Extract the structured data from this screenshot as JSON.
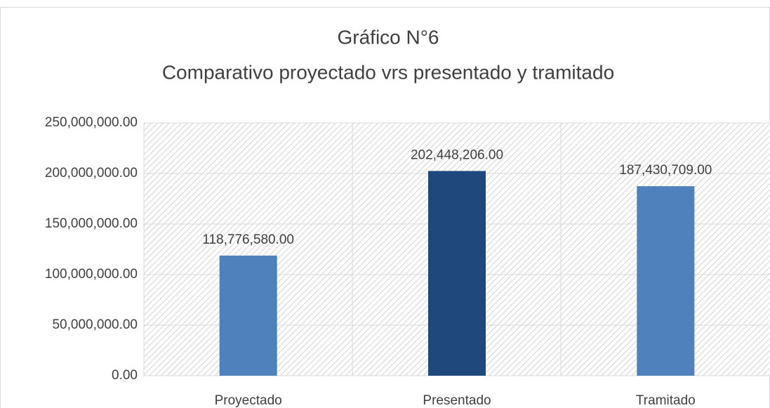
{
  "chart_data": {
    "type": "bar",
    "title": "Gráfico N°6",
    "subtitle": "Comparativo proyectado vrs presentado  y tramitado",
    "categories": [
      "Proyectado",
      "Presentado",
      "Tramitado"
    ],
    "values": [
      118776580,
      202448206,
      187430709
    ],
    "value_labels": [
      "118,776,580.00",
      "202,448,206.00",
      "187,430,709.00"
    ],
    "colors": [
      "#4f81bd",
      "#1f497d",
      "#4f81bd"
    ],
    "ylim": [
      0,
      250000000
    ],
    "yticks": [
      {
        "value": 0,
        "label": "0.00"
      },
      {
        "value": 50000000,
        "label": "50,000,000.00"
      },
      {
        "value": 100000000,
        "label": "100,000,000.00"
      },
      {
        "value": 150000000,
        "label": "150,000,000.00"
      },
      {
        "value": 200000000,
        "label": "200,000,000.00"
      },
      {
        "value": 250000000,
        "label": "250,000,000.00"
      }
    ],
    "grid": true
  }
}
